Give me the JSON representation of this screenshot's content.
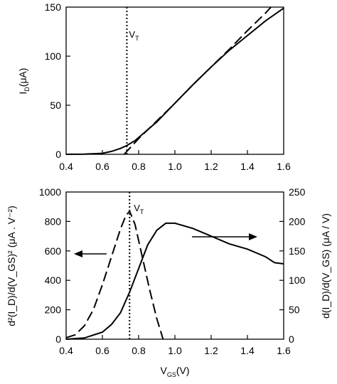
{
  "chart_data": [
    {
      "type": "line",
      "xlim": [
        0.4,
        1.6
      ],
      "ylim": [
        0,
        150
      ],
      "xticks": [
        "0.4",
        "0.6",
        "0.8",
        "1.0",
        "1.2",
        "1.4",
        "1.6"
      ],
      "yticks": [
        "0",
        "50",
        "100",
        "150"
      ],
      "ylabel_main": "I",
      "ylabel_sub": "D",
      "ylabel_unit": "(μA)",
      "vline_x": 0.735,
      "vline_label_main": "V",
      "vline_label_sub": "T",
      "series": [
        {
          "style": "solid",
          "x": [
            0.4,
            0.5,
            0.6,
            0.65,
            0.7,
            0.735,
            0.78,
            0.85,
            0.9,
            1.0,
            1.1,
            1.2,
            1.3,
            1.4,
            1.5,
            1.6
          ],
          "y": [
            0,
            0.2,
            1,
            3,
            6,
            9,
            14,
            25,
            33,
            52,
            71,
            89,
            106,
            121,
            136,
            149
          ]
        },
        {
          "style": "dashed",
          "x": [
            0.72,
            0.8,
            0.9,
            1.0,
            1.1,
            1.2,
            1.3,
            1.4,
            1.5,
            1.53
          ],
          "y": [
            0,
            16,
            34,
            52,
            71,
            89,
            107,
            126,
            144,
            150
          ]
        }
      ]
    },
    {
      "type": "line",
      "xlim": [
        0.4,
        1.6
      ],
      "ylim": [
        0,
        1000
      ],
      "y2lim": [
        0,
        250
      ],
      "xticks": [
        "0.4",
        "0.6",
        "0.8",
        "1.0",
        "1.2",
        "1.4",
        "1.6"
      ],
      "yticks": [
        "0",
        "200",
        "400",
        "600",
        "800",
        "1000"
      ],
      "y2ticks": [
        "0",
        "50",
        "100",
        "150",
        "200",
        "250"
      ],
      "xlabel_main": "V",
      "xlabel_sub": "GS",
      "xlabel_unit": "(V)",
      "ylabel_left": "d²(I_D)/d(V_GS)² (μA . V⁻²)",
      "ylabel_right": "d(I_D)/d(V_GS) (μA / V)",
      "vline_x": 0.75,
      "vline_label_main": "V",
      "vline_label_sub": "T",
      "series": [
        {
          "style": "dashed",
          "axis": "left",
          "x": [
            0.4,
            0.45,
            0.5,
            0.55,
            0.6,
            0.65,
            0.7,
            0.73,
            0.75,
            0.78,
            0.82,
            0.86,
            0.9,
            0.935
          ],
          "y": [
            10,
            30,
            90,
            200,
            370,
            560,
            750,
            840,
            870,
            780,
            560,
            340,
            140,
            0
          ]
        },
        {
          "style": "solid",
          "axis": "right",
          "x": [
            0.4,
            0.5,
            0.6,
            0.65,
            0.7,
            0.75,
            0.8,
            0.85,
            0.9,
            0.95,
            1.0,
            1.1,
            1.2,
            1.3,
            1.4,
            1.5,
            1.55,
            1.6
          ],
          "y": [
            0,
            2,
            12,
            25,
            45,
            80,
            120,
            160,
            185,
            197,
            197,
            188,
            175,
            162,
            153,
            140,
            130,
            128
          ]
        }
      ]
    }
  ]
}
